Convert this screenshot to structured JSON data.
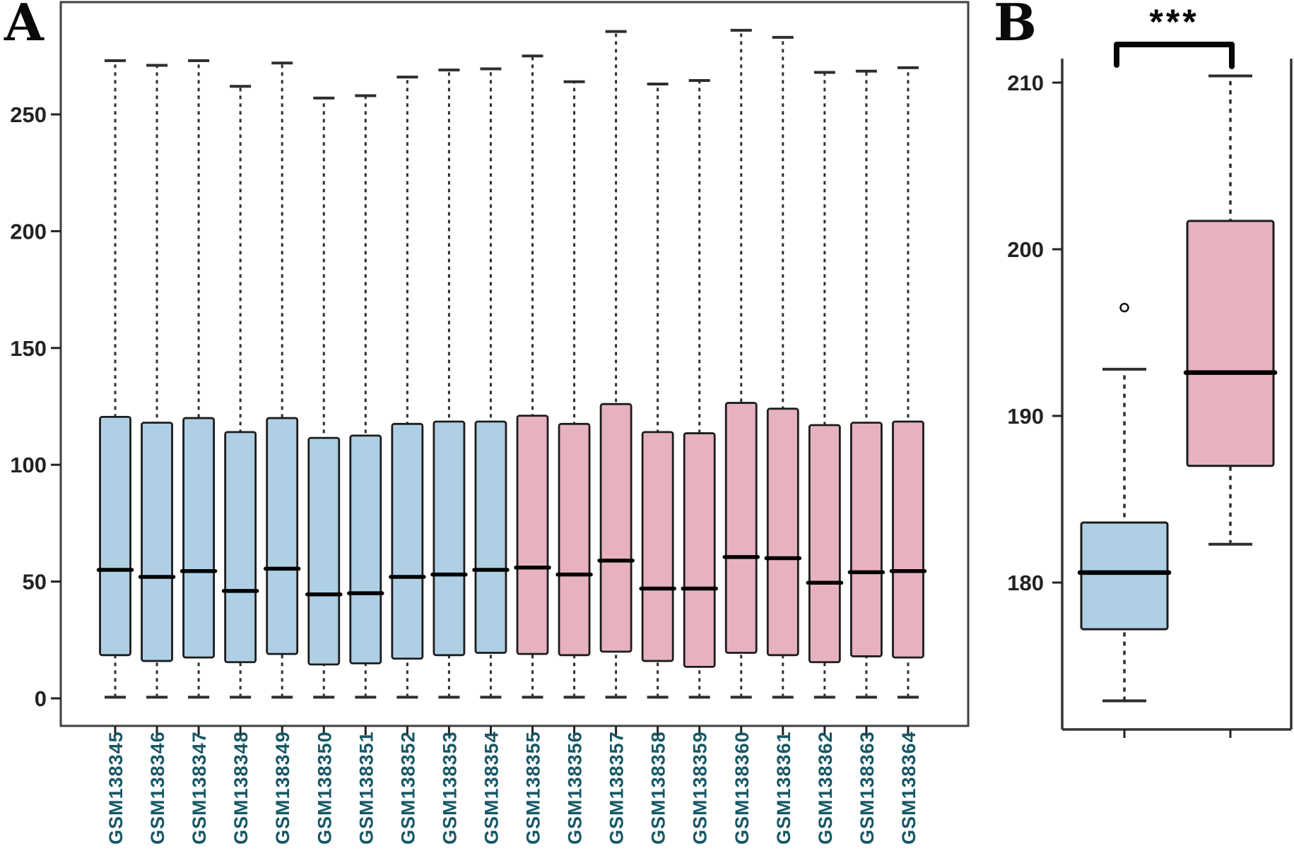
{
  "figure": {
    "background": "#ffffff",
    "panel_count": 2
  },
  "colors": {
    "group_blue_fill": "#aecfe4",
    "group_pink_fill": "#e7b2c0",
    "box_stroke": "#1c1c1c",
    "median_line": "#000000",
    "whisker": "#2e2e2e",
    "frame": "#3f3f3f",
    "axis_text": "#222222",
    "category_text": "#175764",
    "significance_text": "#060606"
  },
  "chart_data": [
    {
      "panel_label": "A",
      "type": "boxplot",
      "orientation": "vertical",
      "grid": false,
      "legend": "none",
      "ylim": [
        0,
        298
      ],
      "y_ticks": [
        0,
        50,
        100,
        150,
        200,
        250
      ],
      "x_tick_label_rotation": -90,
      "categories": [
        "GSM138345",
        "GSM138346",
        "GSM138347",
        "GSM138348",
        "GSM138349",
        "GSM138350",
        "GSM138351",
        "GSM138352",
        "GSM138353",
        "GSM138354",
        "GSM138355",
        "GSM138356",
        "GSM138357",
        "GSM138358",
        "GSM138359",
        "GSM138360",
        "GSM138361",
        "GSM138362",
        "GSM138363",
        "GSM138364"
      ],
      "boxes": [
        {
          "category": "GSM138345",
          "group": "blue",
          "whisker_low": 0.5,
          "q1": 18.5,
          "median": 55,
          "q3": 120.5,
          "whisker_high": 273,
          "outliers": []
        },
        {
          "category": "GSM138346",
          "group": "blue",
          "whisker_low": 0.5,
          "q1": 16,
          "median": 52,
          "q3": 118,
          "whisker_high": 271,
          "outliers": []
        },
        {
          "category": "GSM138347",
          "group": "blue",
          "whisker_low": 0.5,
          "q1": 17.5,
          "median": 54.5,
          "q3": 120,
          "whisker_high": 273,
          "outliers": []
        },
        {
          "category": "GSM138348",
          "group": "blue",
          "whisker_low": 0.5,
          "q1": 15.5,
          "median": 46,
          "q3": 114,
          "whisker_high": 262,
          "outliers": []
        },
        {
          "category": "GSM138349",
          "group": "blue",
          "whisker_low": 0.5,
          "q1": 19,
          "median": 55.5,
          "q3": 120,
          "whisker_high": 272,
          "outliers": []
        },
        {
          "category": "GSM138350",
          "group": "blue",
          "whisker_low": 0.5,
          "q1": 14.5,
          "median": 44.5,
          "q3": 111.5,
          "whisker_high": 257,
          "outliers": []
        },
        {
          "category": "GSM138351",
          "group": "blue",
          "whisker_low": 0.5,
          "q1": 15,
          "median": 45,
          "q3": 112.5,
          "whisker_high": 258,
          "outliers": []
        },
        {
          "category": "GSM138352",
          "group": "blue",
          "whisker_low": 0.5,
          "q1": 17,
          "median": 52,
          "q3": 117.5,
          "whisker_high": 266,
          "outliers": []
        },
        {
          "category": "GSM138353",
          "group": "blue",
          "whisker_low": 0.5,
          "q1": 18.5,
          "median": 53,
          "q3": 118.5,
          "whisker_high": 269,
          "outliers": []
        },
        {
          "category": "GSM138354",
          "group": "blue",
          "whisker_low": 0.5,
          "q1": 19.5,
          "median": 55,
          "q3": 118.5,
          "whisker_high": 269.5,
          "outliers": []
        },
        {
          "category": "GSM138355",
          "group": "pink",
          "whisker_low": 0.5,
          "q1": 19,
          "median": 56,
          "q3": 121,
          "whisker_high": 275,
          "outliers": []
        },
        {
          "category": "GSM138356",
          "group": "pink",
          "whisker_low": 0.5,
          "q1": 18.5,
          "median": 53,
          "q3": 117.5,
          "whisker_high": 264,
          "outliers": []
        },
        {
          "category": "GSM138357",
          "group": "pink",
          "whisker_low": 0.5,
          "q1": 20,
          "median": 59,
          "q3": 126,
          "whisker_high": 285.5,
          "outliers": []
        },
        {
          "category": "GSM138358",
          "group": "pink",
          "whisker_low": 0.5,
          "q1": 16,
          "median": 47,
          "q3": 114,
          "whisker_high": 263,
          "outliers": []
        },
        {
          "category": "GSM138359",
          "group": "pink",
          "whisker_low": 0.5,
          "q1": 13.5,
          "median": 47,
          "q3": 113.5,
          "whisker_high": 264.5,
          "outliers": []
        },
        {
          "category": "GSM138360",
          "group": "pink",
          "whisker_low": 0.5,
          "q1": 19.5,
          "median": 60.5,
          "q3": 126.5,
          "whisker_high": 286,
          "outliers": []
        },
        {
          "category": "GSM138361",
          "group": "pink",
          "whisker_low": 0.5,
          "q1": 18.5,
          "median": 60,
          "q3": 124,
          "whisker_high": 283,
          "outliers": []
        },
        {
          "category": "GSM138362",
          "group": "pink",
          "whisker_low": 0.5,
          "q1": 15.5,
          "median": 49.5,
          "q3": 117,
          "whisker_high": 268,
          "outliers": []
        },
        {
          "category": "GSM138363",
          "group": "pink",
          "whisker_low": 0.5,
          "q1": 18,
          "median": 54,
          "q3": 118,
          "whisker_high": 268.5,
          "outliers": []
        },
        {
          "category": "GSM138364",
          "group": "pink",
          "whisker_low": 0.5,
          "q1": 17.5,
          "median": 54.5,
          "q3": 118.5,
          "whisker_high": 270,
          "outliers": []
        }
      ]
    },
    {
      "panel_label": "B",
      "type": "boxplot",
      "orientation": "vertical",
      "grid": false,
      "legend": "none",
      "ylim": [
        171,
        211.5
      ],
      "y_ticks": [
        180,
        190,
        200,
        210
      ],
      "categories": [
        "",
        ""
      ],
      "boxes": [
        {
          "category": "",
          "group": "blue",
          "whisker_low": 172.9,
          "q1": 177.2,
          "median": 180.6,
          "q3": 183.6,
          "whisker_high": 192.8,
          "outliers": [
            196.5
          ]
        },
        {
          "category": "",
          "group": "pink",
          "whisker_low": 182.3,
          "q1": 187.0,
          "median": 192.6,
          "q3": 201.7,
          "whisker_high": 210.4,
          "outliers": []
        }
      ],
      "significance": {
        "label": "***",
        "between": [
          0,
          1
        ]
      }
    }
  ]
}
